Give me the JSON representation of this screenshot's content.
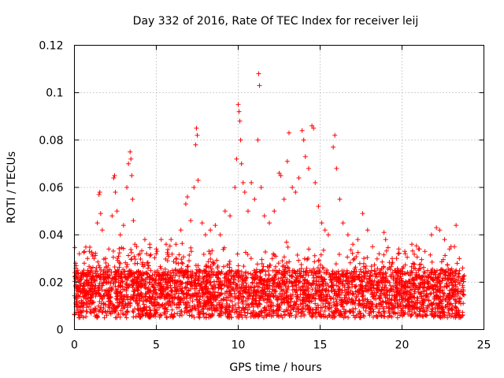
{
  "chart_data": {
    "type": "scatter",
    "title": "Day 332 of 2016, Rate Of TEC Index for receiver leij",
    "xlabel": "GPS time / hours",
    "ylabel": "ROTI / TECUs",
    "xlim": [
      0,
      25
    ],
    "ylim": [
      0,
      0.12
    ],
    "xticks": [
      0,
      5,
      10,
      15,
      20,
      25
    ],
    "xtick_labels": [
      "0",
      "5",
      "10",
      "15",
      "20",
      "25"
    ],
    "yticks": [
      0,
      0.02,
      0.04,
      0.06,
      0.08,
      0.1,
      0.12
    ],
    "ytick_labels": [
      "0",
      "0.02",
      "0.04",
      "0.06",
      "0.08",
      "0.1",
      "0.12"
    ],
    "grid": true,
    "marker": "plus",
    "color": "#ff0000",
    "series": [
      {
        "name": "ROTI",
        "points": [
          [
            0.1,
            0.018
          ],
          [
            0.2,
            0.025
          ],
          [
            0.3,
            0.032
          ],
          [
            0.4,
            0.022
          ],
          [
            0.6,
            0.028
          ],
          [
            0.8,
            0.03
          ],
          [
            1.0,
            0.026
          ],
          [
            1.2,
            0.03
          ],
          [
            1.4,
            0.045
          ],
          [
            1.5,
            0.057
          ],
          [
            1.55,
            0.058
          ],
          [
            1.6,
            0.049
          ],
          [
            1.7,
            0.042
          ],
          [
            1.9,
            0.03
          ],
          [
            2.1,
            0.034
          ],
          [
            2.3,
            0.048
          ],
          [
            2.4,
            0.064
          ],
          [
            2.45,
            0.065
          ],
          [
            2.5,
            0.058
          ],
          [
            2.6,
            0.05
          ],
          [
            2.8,
            0.04
          ],
          [
            3.0,
            0.044
          ],
          [
            3.2,
            0.06
          ],
          [
            3.3,
            0.07
          ],
          [
            3.4,
            0.075
          ],
          [
            3.45,
            0.072
          ],
          [
            3.5,
            0.065
          ],
          [
            3.55,
            0.055
          ],
          [
            3.6,
            0.046
          ],
          [
            3.8,
            0.035
          ],
          [
            4.0,
            0.032
          ],
          [
            4.3,
            0.038
          ],
          [
            4.6,
            0.036
          ],
          [
            5.0,
            0.034
          ],
          [
            5.3,
            0.038
          ],
          [
            5.6,
            0.036
          ],
          [
            5.9,
            0.038
          ],
          [
            6.2,
            0.036
          ],
          [
            6.5,
            0.042
          ],
          [
            6.8,
            0.053
          ],
          [
            6.9,
            0.056
          ],
          [
            7.1,
            0.046
          ],
          [
            7.3,
            0.06
          ],
          [
            7.4,
            0.078
          ],
          [
            7.45,
            0.085
          ],
          [
            7.5,
            0.082
          ],
          [
            7.55,
            0.063
          ],
          [
            7.8,
            0.045
          ],
          [
            8.0,
            0.04
          ],
          [
            8.3,
            0.042
          ],
          [
            8.6,
            0.044
          ],
          [
            8.9,
            0.04
          ],
          [
            9.2,
            0.05
          ],
          [
            9.5,
            0.048
          ],
          [
            9.8,
            0.06
          ],
          [
            9.9,
            0.072
          ],
          [
            10.0,
            0.095
          ],
          [
            10.05,
            0.092
          ],
          [
            10.1,
            0.088
          ],
          [
            10.15,
            0.08
          ],
          [
            10.2,
            0.07
          ],
          [
            10.3,
            0.062
          ],
          [
            10.4,
            0.058
          ],
          [
            10.6,
            0.05
          ],
          [
            10.8,
            0.062
          ],
          [
            11.0,
            0.055
          ],
          [
            11.2,
            0.08
          ],
          [
            11.25,
            0.108
          ],
          [
            11.3,
            0.103
          ],
          [
            11.4,
            0.06
          ],
          [
            11.6,
            0.048
          ],
          [
            11.9,
            0.045
          ],
          [
            12.2,
            0.05
          ],
          [
            12.5,
            0.066
          ],
          [
            12.6,
            0.065
          ],
          [
            12.8,
            0.055
          ],
          [
            13.0,
            0.071
          ],
          [
            13.1,
            0.083
          ],
          [
            13.3,
            0.06
          ],
          [
            13.5,
            0.058
          ],
          [
            13.7,
            0.064
          ],
          [
            13.9,
            0.084
          ],
          [
            14.0,
            0.08
          ],
          [
            14.1,
            0.073
          ],
          [
            14.3,
            0.068
          ],
          [
            14.5,
            0.086
          ],
          [
            14.6,
            0.085
          ],
          [
            14.7,
            0.062
          ],
          [
            14.9,
            0.052
          ],
          [
            15.1,
            0.045
          ],
          [
            15.3,
            0.042
          ],
          [
            15.5,
            0.04
          ],
          [
            15.8,
            0.077
          ],
          [
            15.9,
            0.082
          ],
          [
            16.0,
            0.068
          ],
          [
            16.2,
            0.055
          ],
          [
            16.4,
            0.045
          ],
          [
            16.7,
            0.04
          ],
          [
            17.0,
            0.036
          ],
          [
            17.3,
            0.038
          ],
          [
            17.6,
            0.049
          ],
          [
            17.9,
            0.042
          ],
          [
            18.2,
            0.035
          ],
          [
            18.6,
            0.032
          ],
          [
            18.9,
            0.041
          ],
          [
            19.0,
            0.038
          ],
          [
            19.4,
            0.03
          ],
          [
            19.8,
            0.034
          ],
          [
            20.2,
            0.032
          ],
          [
            20.6,
            0.036
          ],
          [
            21.0,
            0.034
          ],
          [
            21.4,
            0.033
          ],
          [
            21.8,
            0.04
          ],
          [
            22.1,
            0.043
          ],
          [
            22.3,
            0.042
          ],
          [
            22.6,
            0.038
          ],
          [
            22.9,
            0.034
          ],
          [
            23.2,
            0.035
          ],
          [
            23.3,
            0.044
          ],
          [
            23.5,
            0.03
          ],
          [
            23.7,
            0.026
          ]
        ]
      }
    ]
  }
}
